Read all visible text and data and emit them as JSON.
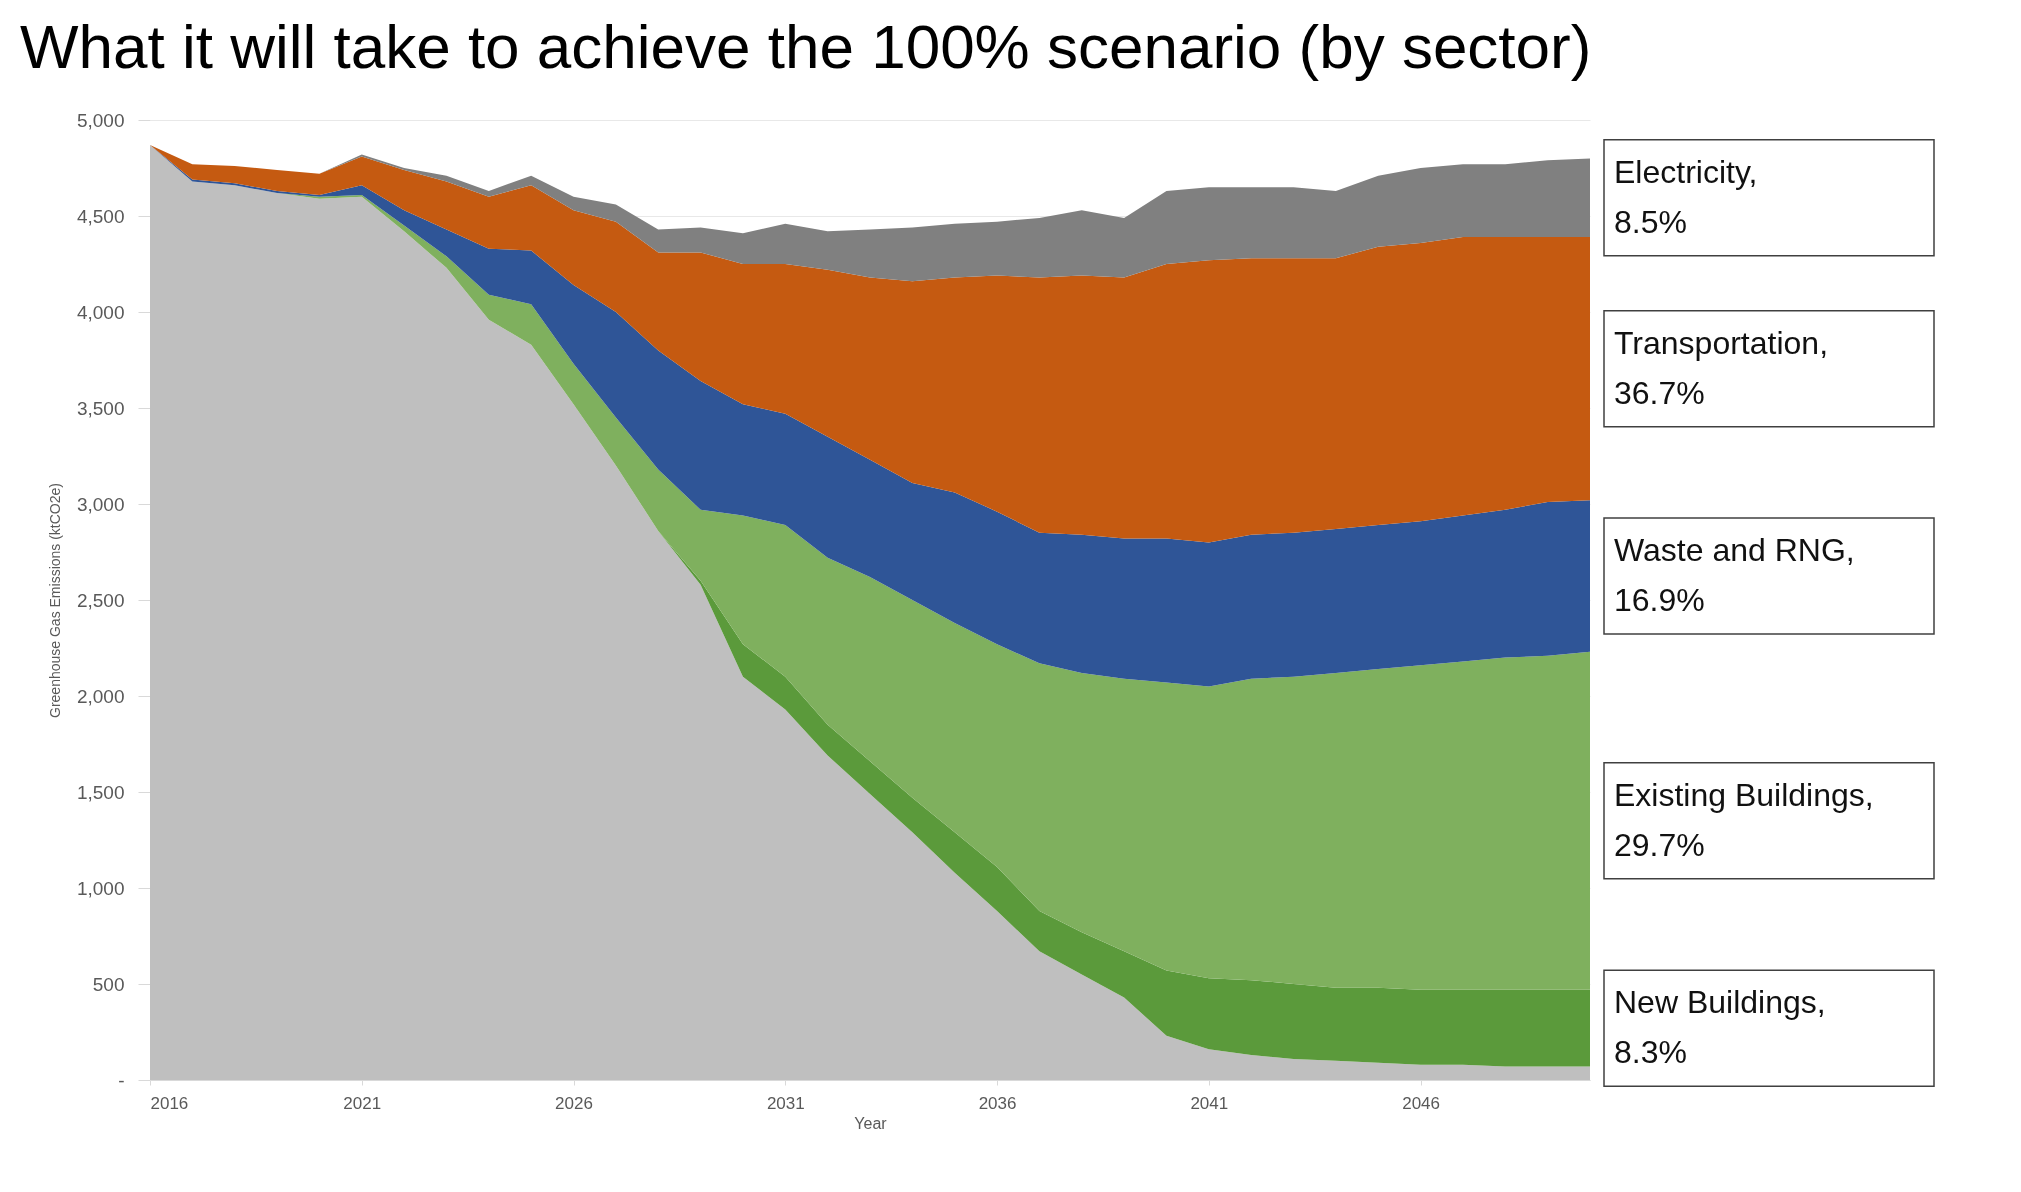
{
  "chart_data": {
    "type": "area",
    "stacked": true,
    "title": "What it will take to achieve the 100% scenario (by sector)",
    "xlabel": "Year",
    "ylabel": "Greenhouse Gas Emissions (ktCO2e)",
    "x": [
      2016,
      2017,
      2018,
      2019,
      2020,
      2021,
      2022,
      2023,
      2024,
      2025,
      2026,
      2027,
      2028,
      2029,
      2030,
      2031,
      2032,
      2033,
      2034,
      2035,
      2036,
      2037,
      2038,
      2039,
      2040,
      2041,
      2042,
      2043,
      2044,
      2045,
      2046,
      2047,
      2048,
      2049,
      2050
    ],
    "xlim": [
      2016,
      2050
    ],
    "xticks": [
      2016,
      2021,
      2026,
      2031,
      2036,
      2041,
      2046
    ],
    "ylim": [
      0,
      5000
    ],
    "yticks": [
      {
        "value": 0,
        "label": "-"
      },
      500,
      {
        "value": 1000,
        "label": "1,000"
      },
      {
        "value": 1500,
        "label": "1,500"
      },
      {
        "value": 2000,
        "label": "2,000"
      },
      {
        "value": 2500,
        "label": "2,500"
      },
      {
        "value": 3000,
        "label": "3,000"
      },
      {
        "value": 3500,
        "label": "3,500"
      },
      {
        "value": 4000,
        "label": "4,000"
      },
      {
        "value": 4500,
        "label": "4,500"
      },
      {
        "value": 5000,
        "label": "5,000"
      }
    ],
    "grid": "y",
    "series": [
      {
        "color": "#bfbfbf",
        "values": [
          4870,
          4680,
          4660,
          4620,
          4590,
          4600,
          4420,
          4230,
          3960,
          3830,
          3520,
          3200,
          2860,
          2580,
          2100,
          1930,
          1690,
          1490,
          1290,
          1080,
          880,
          670,
          550,
          430,
          230,
          160,
          130,
          110,
          100,
          90,
          80,
          80,
          70,
          70,
          70
        ]
      },
      {
        "name": "New Buildings, 8.3%",
        "color": "#5b9a3b",
        "values": [
          0,
          0,
          0,
          0,
          0,
          0,
          0,
          0,
          0,
          0,
          0,
          0,
          0,
          20,
          170,
          170,
          160,
          170,
          180,
          210,
          230,
          210,
          220,
          240,
          340,
          370,
          390,
          390,
          380,
          390,
          390,
          390,
          400,
          400,
          400
        ]
      },
      {
        "name": "Existing Buildings, 29.7%",
        "color": "#7fb05e",
        "values": [
          0,
          0,
          0,
          0,
          10,
          10,
          30,
          60,
          130,
          210,
          210,
          250,
          320,
          370,
          670,
          790,
          870,
          960,
          1030,
          1090,
          1160,
          1290,
          1350,
          1420,
          1500,
          1520,
          1570,
          1600,
          1640,
          1660,
          1690,
          1710,
          1730,
          1740,
          1760
        ]
      },
      {
        "name": "Waste and RNG, 16.9%",
        "color": "#2f5597",
        "values": [
          0,
          10,
          10,
          10,
          10,
          50,
          80,
          140,
          240,
          280,
          410,
          550,
          620,
          670,
          580,
          580,
          630,
          610,
          610,
          680,
          690,
          680,
          720,
          730,
          750,
          750,
          750,
          750,
          750,
          750,
          750,
          760,
          770,
          800,
          790
        ]
      },
      {
        "name": "Transportation, 36.7%",
        "color": "#c55a11",
        "values": [
          0,
          80,
          90,
          110,
          110,
          150,
          210,
          250,
          270,
          340,
          390,
          470,
          510,
          670,
          730,
          780,
          870,
          950,
          1050,
          1120,
          1230,
          1330,
          1350,
          1360,
          1430,
          1470,
          1440,
          1430,
          1410,
          1450,
          1450,
          1450,
          1420,
          1380,
          1370
        ]
      },
      {
        "name": "Electricity, 8.5%",
        "color": "#808080",
        "values": [
          0,
          0,
          0,
          0,
          0,
          10,
          10,
          30,
          30,
          50,
          70,
          90,
          120,
          130,
          160,
          210,
          200,
          250,
          280,
          280,
          280,
          310,
          340,
          310,
          380,
          380,
          370,
          370,
          350,
          370,
          390,
          380,
          380,
          400,
          410
        ]
      }
    ]
  }
}
